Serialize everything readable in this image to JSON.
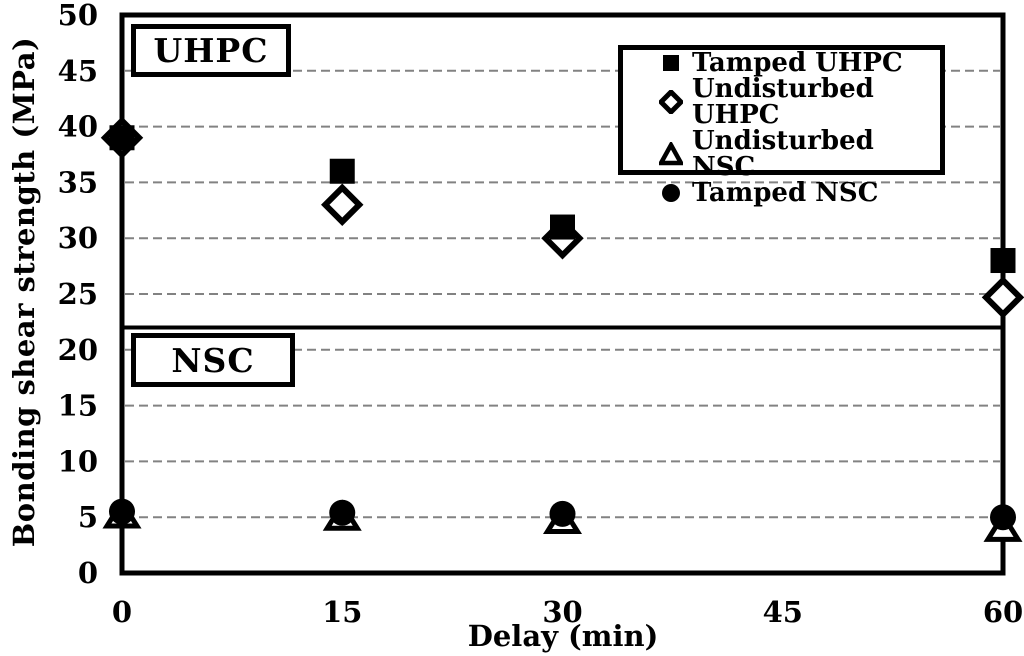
{
  "chart_data": {
    "type": "scatter",
    "title": "",
    "xlabel": "Delay (min)",
    "ylabel": "Bonding shear strength (MPa)",
    "xlim": [
      0,
      60
    ],
    "ylim": [
      0,
      50
    ],
    "x_ticks": [
      0,
      15,
      30,
      45,
      60
    ],
    "y_ticks": [
      0,
      5,
      10,
      15,
      20,
      25,
      30,
      35,
      40,
      45,
      50
    ],
    "grid": "dashed-horizontal",
    "legend_position": "top-right",
    "x": [
      0,
      15,
      30,
      60
    ],
    "series": [
      {
        "name": "Tamped UHPC",
        "marker": "filled-square",
        "values": [
          39,
          36,
          31,
          28
        ]
      },
      {
        "name": "Undisturbed UHPC",
        "marker": "open-diamond",
        "values": [
          39,
          33,
          30,
          24.7
        ]
      },
      {
        "name": "Undisturbed NSC",
        "marker": "open-triangle",
        "values": [
          5.2,
          5.0,
          4.7,
          4.0
        ]
      },
      {
        "name": "Tamped NSC",
        "marker": "filled-circle",
        "values": [
          5.5,
          5.4,
          5.3,
          5.0
        ]
      }
    ],
    "annotations": [
      {
        "text": "UHPC",
        "region": "upper"
      },
      {
        "text": "NSC",
        "region": "lower"
      }
    ],
    "divider_y": 22,
    "colors": {
      "marker": "#000000",
      "grid": "#828282",
      "background": "#ffffff",
      "frame": "#000000"
    }
  }
}
